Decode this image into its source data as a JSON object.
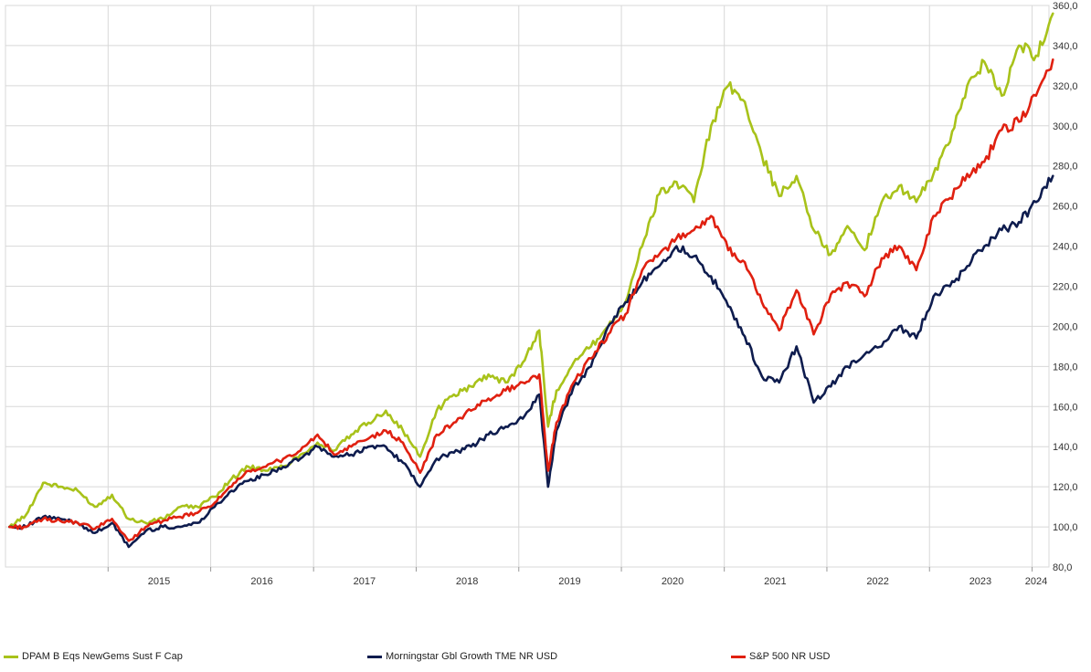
{
  "chart_data": {
    "type": "line",
    "title": "",
    "xlabel": "",
    "ylabel": "",
    "ylim": [
      80,
      360
    ],
    "xlim": [
      "2014-01-01",
      "2024-03-01"
    ],
    "grid": true,
    "legend_position": "bottom",
    "y_ticks": [
      "80,0",
      "100,0",
      "120,0",
      "140,0",
      "160,0",
      "180,0",
      "200,0",
      "220,0",
      "240,0",
      "260,0",
      "280,0",
      "300,0",
      "320,0",
      "340,0",
      "360,0"
    ],
    "x_tick_labels": [
      "2015",
      "2016",
      "2017",
      "2018",
      "2019",
      "2020",
      "2021",
      "2022",
      "2023",
      "2024"
    ],
    "series": [
      {
        "name": "DPAM B Eqs NewGems Sust F Cap",
        "color": "#a8c21a",
        "x": [
          "2014-01",
          "2014-03",
          "2014-05",
          "2014-07",
          "2014-09",
          "2014-11",
          "2015-01",
          "2015-03",
          "2015-05",
          "2015-07",
          "2015-09",
          "2015-11",
          "2016-01",
          "2016-03",
          "2016-05",
          "2016-07",
          "2016-09",
          "2016-11",
          "2017-01",
          "2017-03",
          "2017-05",
          "2017-07",
          "2017-09",
          "2017-11",
          "2018-01",
          "2018-03",
          "2018-05",
          "2018-07",
          "2018-09",
          "2018-11",
          "2019-01",
          "2019-03",
          "2019-04",
          "2019-05",
          "2019-07",
          "2019-09",
          "2019-11",
          "2020-01",
          "2020-03",
          "2020-05",
          "2020-07",
          "2020-09",
          "2020-11",
          "2021-01",
          "2021-03",
          "2021-05",
          "2021-07",
          "2021-09",
          "2021-11",
          "2022-01",
          "2022-03",
          "2022-05",
          "2022-07",
          "2022-09",
          "2022-11",
          "2023-01",
          "2023-03",
          "2023-05",
          "2023-07",
          "2023-09",
          "2023-11",
          "2024-01",
          "2024-03"
        ],
        "values": [
          100,
          106,
          122,
          120,
          118,
          110,
          116,
          104,
          102,
          104,
          110,
          110,
          115,
          124,
          130,
          128,
          130,
          136,
          142,
          138,
          146,
          152,
          158,
          148,
          135,
          158,
          166,
          170,
          176,
          172,
          182,
          198,
          150,
          168,
          182,
          190,
          200,
          212,
          240,
          266,
          272,
          262,
          300,
          320,
          312,
          285,
          265,
          275,
          248,
          236,
          250,
          238,
          262,
          270,
          262,
          276,
          292,
          320,
          332,
          315,
          340,
          335,
          356
        ]
      },
      {
        "name": "Morningstar Gbl Growth TME NR USD",
        "color": "#0e1c4e",
        "x": [
          "2014-01",
          "2014-03",
          "2014-05",
          "2014-07",
          "2014-09",
          "2014-11",
          "2015-01",
          "2015-03",
          "2015-05",
          "2015-07",
          "2015-09",
          "2015-11",
          "2016-01",
          "2016-03",
          "2016-05",
          "2016-07",
          "2016-09",
          "2016-11",
          "2017-01",
          "2017-03",
          "2017-05",
          "2017-07",
          "2017-09",
          "2017-11",
          "2018-01",
          "2018-03",
          "2018-05",
          "2018-07",
          "2018-09",
          "2018-11",
          "2019-01",
          "2019-03",
          "2019-04",
          "2019-05",
          "2019-07",
          "2019-09",
          "2019-11",
          "2020-01",
          "2020-03",
          "2020-05",
          "2020-07",
          "2020-09",
          "2020-11",
          "2021-01",
          "2021-03",
          "2021-05",
          "2021-07",
          "2021-09",
          "2021-11",
          "2022-01",
          "2022-03",
          "2022-05",
          "2022-07",
          "2022-09",
          "2022-11",
          "2023-01",
          "2023-03",
          "2023-05",
          "2023-07",
          "2023-09",
          "2023-11",
          "2024-01",
          "2024-03"
        ],
        "values": [
          100,
          100,
          105,
          104,
          102,
          97,
          102,
          90,
          98,
          100,
          100,
          102,
          110,
          118,
          123,
          126,
          130,
          134,
          140,
          135,
          136,
          140,
          140,
          132,
          120,
          134,
          137,
          140,
          146,
          150,
          154,
          166,
          120,
          148,
          170,
          180,
          200,
          212,
          222,
          230,
          240,
          235,
          225,
          210,
          195,
          175,
          172,
          190,
          162,
          170,
          180,
          186,
          190,
          200,
          194,
          215,
          220,
          230,
          240,
          248,
          252,
          262,
          275
        ]
      },
      {
        "name": "S&P 500 NR USD",
        "color": "#e02010",
        "x": [
          "2014-01",
          "2014-03",
          "2014-05",
          "2014-07",
          "2014-09",
          "2014-11",
          "2015-01",
          "2015-03",
          "2015-05",
          "2015-07",
          "2015-09",
          "2015-11",
          "2016-01",
          "2016-03",
          "2016-05",
          "2016-07",
          "2016-09",
          "2016-11",
          "2017-01",
          "2017-03",
          "2017-05",
          "2017-07",
          "2017-09",
          "2017-11",
          "2018-01",
          "2018-03",
          "2018-05",
          "2018-07",
          "2018-09",
          "2018-11",
          "2019-01",
          "2019-03",
          "2019-04",
          "2019-05",
          "2019-07",
          "2019-09",
          "2019-11",
          "2020-01",
          "2020-03",
          "2020-05",
          "2020-07",
          "2020-09",
          "2020-11",
          "2021-01",
          "2021-03",
          "2021-05",
          "2021-07",
          "2021-09",
          "2021-11",
          "2022-01",
          "2022-03",
          "2022-05",
          "2022-07",
          "2022-09",
          "2022-11",
          "2023-01",
          "2023-03",
          "2023-05",
          "2023-07",
          "2023-09",
          "2023-11",
          "2024-01",
          "2024-03"
        ],
        "values": [
          100,
          100,
          104,
          103,
          102,
          99,
          104,
          93,
          100,
          103,
          105,
          107,
          112,
          120,
          128,
          130,
          134,
          138,
          146,
          136,
          140,
          144,
          148,
          142,
          127,
          146,
          152,
          158,
          164,
          168,
          172,
          176,
          128,
          152,
          172,
          184,
          196,
          206,
          228,
          236,
          244,
          248,
          255,
          238,
          232,
          212,
          198,
          218,
          196,
          216,
          222,
          215,
          234,
          240,
          228,
          255,
          264,
          276,
          282,
          298,
          302,
          315,
          333
        ]
      }
    ]
  }
}
